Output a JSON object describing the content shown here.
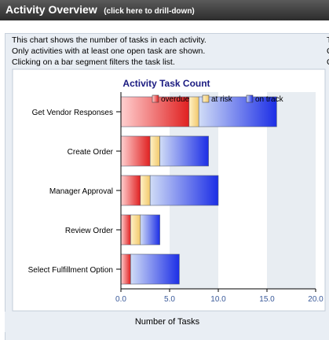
{
  "header": {
    "title": "Activity Overview",
    "drill_hint": "(click here to drill-down)"
  },
  "description": [
    "This chart shows the number of tasks in each activity.",
    "Only activities with at least one open task are shown.",
    "Clicking on a bar segment filters the task list."
  ],
  "right_column": [
    "T",
    "C",
    "C"
  ],
  "colors": {
    "overdue": "#e02020",
    "at_risk": "#f2c86a",
    "on_track": "#1c2ee6"
  },
  "chart_data": {
    "type": "bar",
    "orientation": "horizontal",
    "stacked": true,
    "title": "Activity Task Count",
    "xlabel": "Number of Tasks",
    "ylabel": "",
    "xlim": [
      0,
      20
    ],
    "xticks": [
      "0.0",
      "5.0",
      "10.0",
      "15.0",
      "20.0"
    ],
    "categories": [
      "Get Vendor Responses",
      "Create Order",
      "Manager Approval",
      "Review Order",
      "Select Fulfillment Option"
    ],
    "series": [
      {
        "name": "overdue",
        "values": [
          7,
          3,
          2,
          1,
          1
        ]
      },
      {
        "name": "at risk",
        "values": [
          1,
          1,
          1,
          1,
          0
        ]
      },
      {
        "name": "on track",
        "values": [
          8,
          5,
          7,
          2,
          5
        ]
      }
    ],
    "legend_position": "top-right",
    "grid": "alternating vertical bands"
  }
}
